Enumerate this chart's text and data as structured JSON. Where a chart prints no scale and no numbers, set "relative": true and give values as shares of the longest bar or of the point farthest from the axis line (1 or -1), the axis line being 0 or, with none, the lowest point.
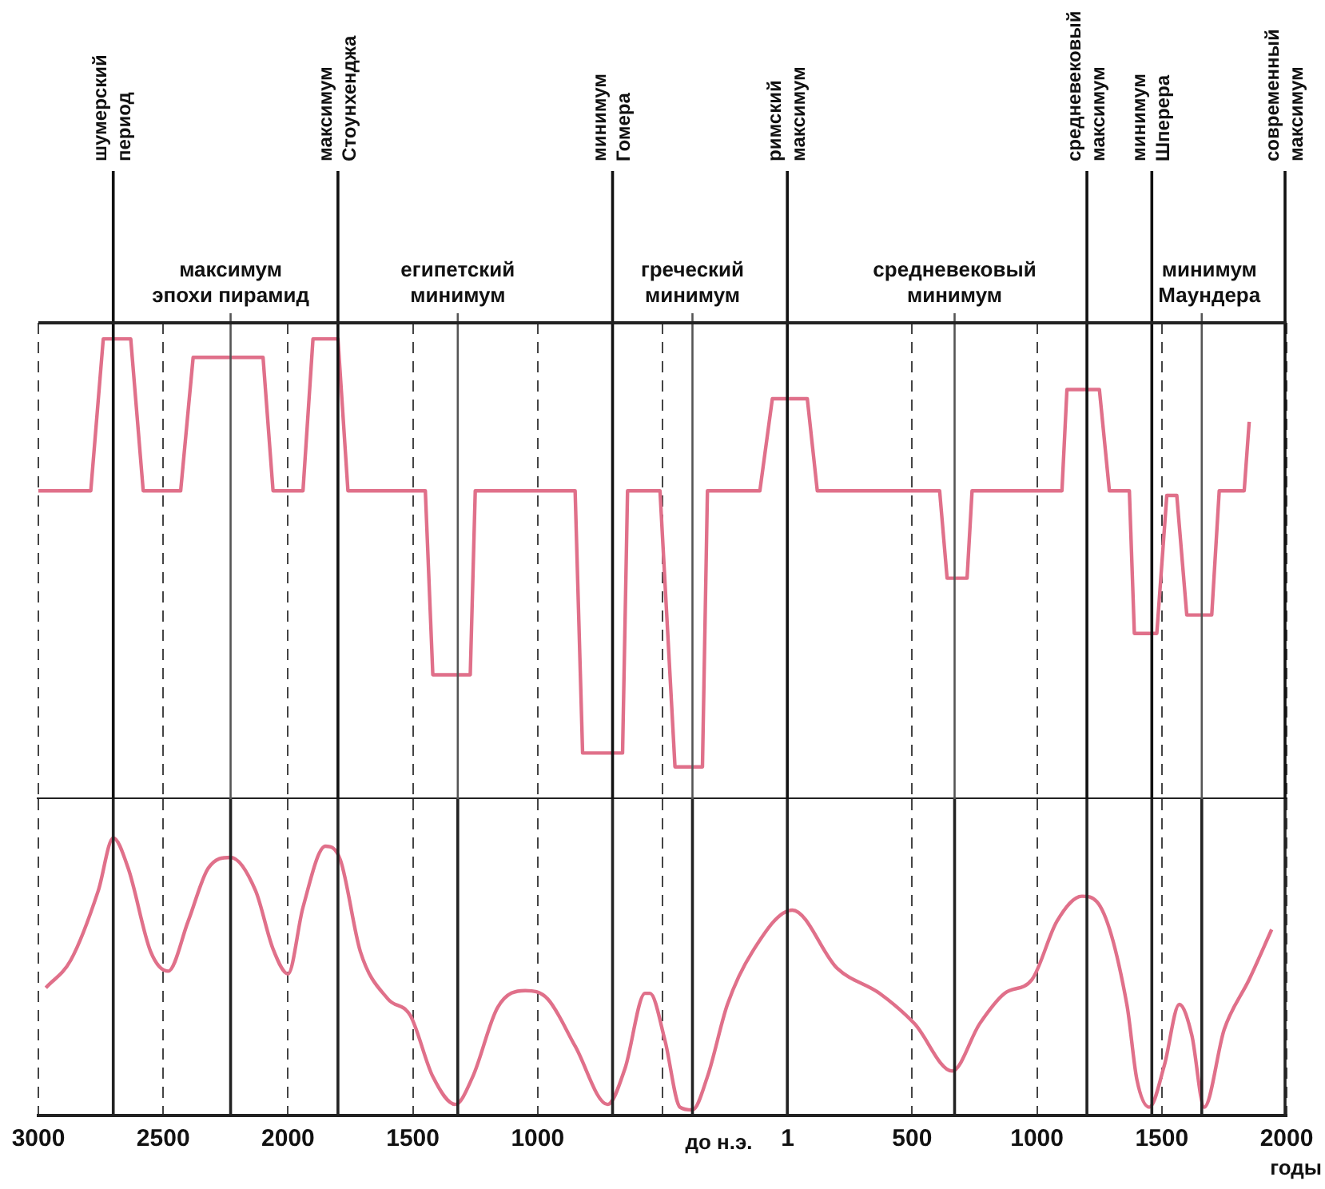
{
  "chart_data": [
    {
      "type": "line",
      "color": "#e0708a",
      "relative": true,
      "grid": "x",
      "x": [
        -3000,
        -2790,
        -2740,
        -2630,
        -2580,
        -2430,
        -2380,
        -2100,
        -2060,
        -1940,
        -1900,
        -1800,
        -1760,
        -1450,
        -1420,
        -1270,
        -1250,
        -850,
        -820,
        -660,
        -640,
        -510,
        -450,
        -340,
        -320,
        -110,
        -60,
        80,
        120,
        610,
        640,
        720,
        740,
        1100,
        1120,
        1250,
        1290,
        1370,
        1390,
        1480,
        1520,
        1560,
        1600,
        1700,
        1730,
        1830,
        1850
      ],
      "values": [
        0.67,
        0.67,
        1,
        1,
        0.67,
        0.67,
        0.96,
        0.96,
        0.67,
        0.67,
        1,
        1,
        0.67,
        0.67,
        0.27,
        0.27,
        0.67,
        0.67,
        0.1,
        0.1,
        0.67,
        0.67,
        0.07,
        0.07,
        0.67,
        0.67,
        0.87,
        0.87,
        0.67,
        0.67,
        0.48,
        0.48,
        0.67,
        0.67,
        0.89,
        0.89,
        0.67,
        0.67,
        0.36,
        0.36,
        0.66,
        0.66,
        0.4,
        0.4,
        0.67,
        0.67,
        0.82
      ],
      "xlim": [
        -3000,
        2000
      ],
      "ref_lines": [
        {
          "axis": "x",
          "value": -2700,
          "label": "шумерский период",
          "color": "#111111"
        },
        {
          "axis": "x",
          "value": -2230,
          "label": "максимум эпохи пирамид",
          "color": "#555555"
        },
        {
          "axis": "x",
          "value": -1800,
          "label": "максимум Стоунхенджа",
          "color": "#111111"
        },
        {
          "axis": "x",
          "value": -1320,
          "label": "египетский минимум",
          "color": "#555555"
        },
        {
          "axis": "x",
          "value": -700,
          "label": "минимум Гомера",
          "color": "#111111"
        },
        {
          "axis": "x",
          "value": -380,
          "label": "греческий минимум",
          "color": "#555555"
        },
        {
          "axis": "x",
          "value": 0,
          "label": "римский максимум",
          "color": "#111111"
        },
        {
          "axis": "x",
          "value": 670,
          "label": "средневековый минимум",
          "color": "#555555"
        },
        {
          "axis": "x",
          "value": 1200,
          "label": "средневековый максимум",
          "color": "#111111"
        },
        {
          "axis": "x",
          "value": 1460,
          "label": "минимум Шперера",
          "color": "#111111"
        },
        {
          "axis": "x",
          "value": 1660,
          "label": "минимум Маундера",
          "color": "#555555"
        },
        {
          "axis": "x",
          "value": 2000,
          "label": "современный максимум",
          "color": "#111111"
        }
      ]
    },
    {
      "type": "line",
      "color": "#e0708a",
      "relative": true,
      "grid": "x",
      "tick_labels": "x",
      "x": [
        -2970,
        -2870,
        -2760,
        -2700,
        -2640,
        -2550,
        -2480,
        -2400,
        -2320,
        -2230,
        -2130,
        -2060,
        -2000,
        -1940,
        -1850,
        -1790,
        -1710,
        -1600,
        -1510,
        -1420,
        -1330,
        -1260,
        -1160,
        -1050,
        -960,
        -850,
        -720,
        -650,
        -570,
        -550,
        -490,
        -430,
        -380,
        -320,
        -240,
        -140,
        20,
        200,
        370,
        510,
        660,
        770,
        870,
        980,
        1080,
        1180,
        1240,
        1360,
        1400,
        1450,
        1510,
        1570,
        1620,
        1670,
        1750,
        1850,
        1940
      ],
      "values": [
        0.46,
        0.56,
        0.81,
        1,
        0.89,
        0.59,
        0.52,
        0.7,
        0.89,
        0.93,
        0.81,
        0.6,
        0.51,
        0.75,
        0.97,
        0.92,
        0.59,
        0.42,
        0.36,
        0.14,
        0.04,
        0.14,
        0.39,
        0.45,
        0.42,
        0.25,
        0.04,
        0.17,
        0.44,
        0.44,
        0.27,
        0.03,
        0.02,
        0.14,
        0.4,
        0.59,
        0.74,
        0.53,
        0.44,
        0.33,
        0.16,
        0.33,
        0.44,
        0.49,
        0.7,
        0.79,
        0.77,
        0.4,
        0.13,
        0.03,
        0.18,
        0.4,
        0.29,
        0.03,
        0.31,
        0.49,
        0.67
      ],
      "xlim": [
        -3000,
        2000
      ],
      "xticks": [
        {
          "value": -3000,
          "label": "3000"
        },
        {
          "value": -2500,
          "label": "2500"
        },
        {
          "value": -2000,
          "label": "2000"
        },
        {
          "value": -1500,
          "label": "1500"
        },
        {
          "value": -1000,
          "label": "1000"
        },
        {
          "value": -500,
          "label": null
        },
        1,
        500,
        1000,
        1500,
        2000
      ],
      "ref_lines": [
        {
          "axis": "x",
          "value": -2700
        },
        {
          "axis": "x",
          "value": -2230
        },
        {
          "axis": "x",
          "value": -1800
        },
        {
          "axis": "x",
          "value": -1320
        },
        {
          "axis": "x",
          "value": -700
        },
        {
          "axis": "x",
          "value": -380
        },
        {
          "axis": "x",
          "value": 0
        },
        {
          "axis": "x",
          "value": 670
        },
        {
          "axis": "x",
          "value": 1200
        },
        {
          "axis": "x",
          "value": 1460
        },
        {
          "axis": "x",
          "value": 1660
        },
        {
          "axis": "x",
          "value": 2000
        }
      ],
      "annotations": [
        "до н.э.",
        "годы"
      ]
    }
  ]
}
